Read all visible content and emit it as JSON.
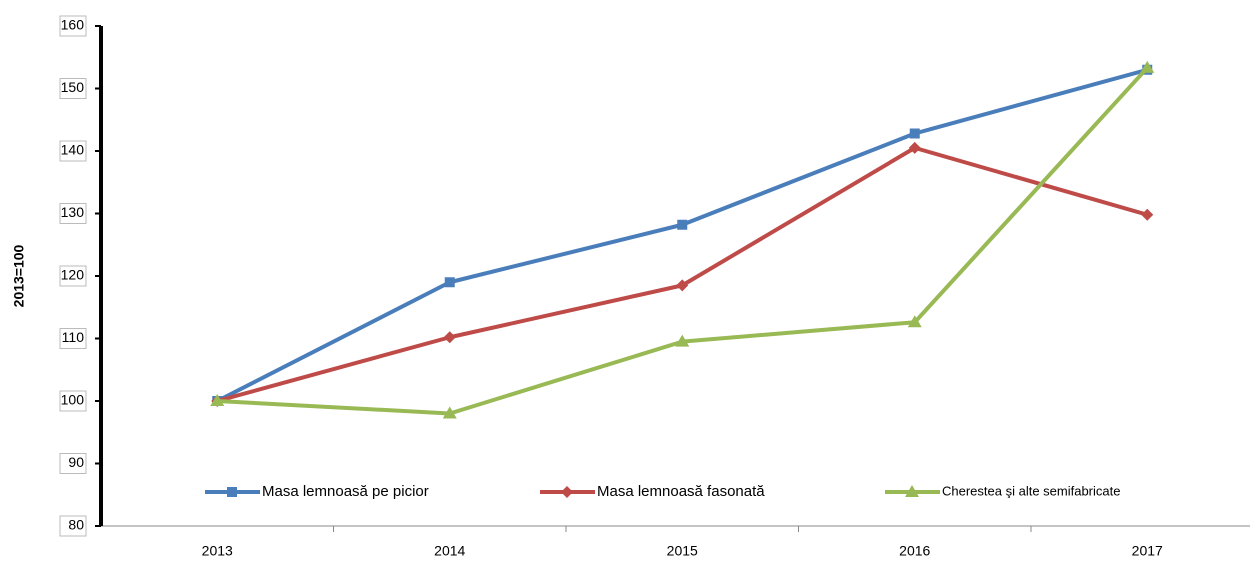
{
  "chart_data": {
    "type": "line",
    "y_label": "2013=100",
    "categories": [
      "2013",
      "2014",
      "2015",
      "2016",
      "2017"
    ],
    "series": [
      {
        "name": "Masa lemnoasă pe picior",
        "color": "#4a7ebb",
        "marker": "square",
        "values": [
          100,
          119,
          128.2,
          142.8,
          153
        ]
      },
      {
        "name": "Masa lemnoasă fasonată",
        "color": "#be4b48",
        "marker": "diamond",
        "values": [
          100,
          110.2,
          118.5,
          140.5,
          129.8
        ]
      },
      {
        "name": "Cherestea şi alte semifabricate",
        "color": "#98b954",
        "marker": "triangle",
        "values": [
          100,
          98,
          109.5,
          112.6,
          153.3
        ]
      }
    ],
    "ylim": [
      80,
      160
    ],
    "yticks": [
      80,
      90,
      100,
      110,
      120,
      130,
      140,
      150,
      160
    ],
    "grid": false,
    "legend": "bottom"
  }
}
